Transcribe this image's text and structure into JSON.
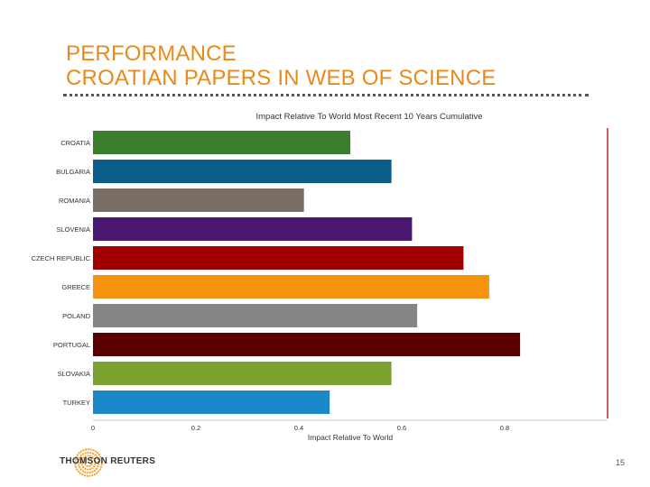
{
  "slide": {
    "title_line1": "PERFORMANCE",
    "title_line2": "CROATIAN PAPERS IN WEB OF SCIENCE",
    "brand": "THOMSON REUTERS",
    "page_number": "15"
  },
  "chart_data": {
    "type": "bar",
    "orientation": "horizontal",
    "title": "Impact Relative To World Most Recent 10 Years Cumulative",
    "xlabel": "Impact Relative To World",
    "ylabel": "",
    "xlim": [
      0,
      1
    ],
    "x_ticks": [
      "0",
      "0.2",
      "0.4",
      "0.6",
      "0.8"
    ],
    "reference_line": 1,
    "categories": [
      "CROATIA",
      "BULGARIA",
      "ROMANIA",
      "SLOVENIA",
      "CZECH REPUBLIC",
      "GREECE",
      "POLAND",
      "PORTUGAL",
      "SLOVAKIA",
      "TURKEY"
    ],
    "values": [
      0.5,
      0.58,
      0.41,
      0.62,
      0.72,
      0.77,
      0.63,
      0.83,
      0.58,
      0.46
    ],
    "colors": [
      "#3a7d2c",
      "#0b5d8a",
      "#7a6e65",
      "#4a1870",
      "#a00000",
      "#f5920e",
      "#858585",
      "#5a0000",
      "#7ba12e",
      "#1b88c9"
    ],
    "reference_color": "#cc2222",
    "grid": false,
    "legend": "none"
  }
}
